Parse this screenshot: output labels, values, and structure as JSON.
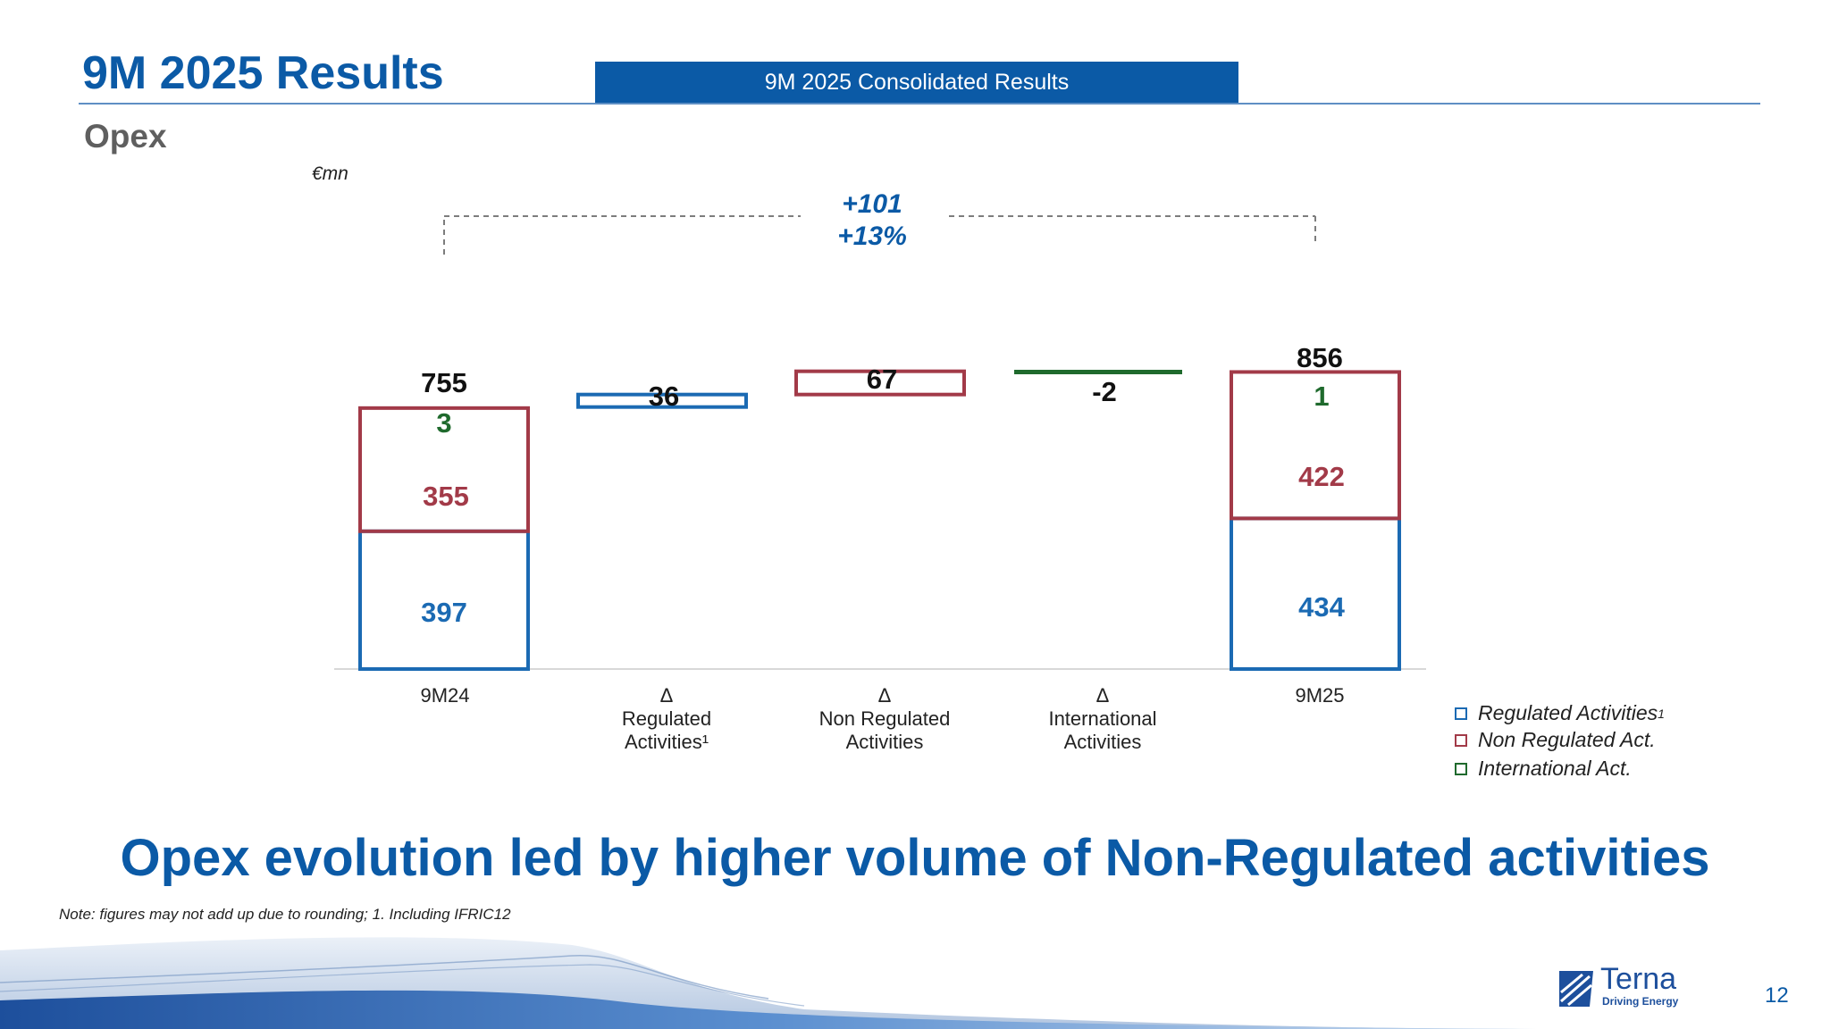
{
  "header": {
    "title": "9M 2025 Results",
    "banner": "9M 2025 Consolidated Results",
    "subtitle": "Opex"
  },
  "chart_data": {
    "type": "bar",
    "subtype": "waterfall",
    "unit": "€mn",
    "categories": [
      "9M24",
      "Δ",
      "Δ",
      "Δ",
      "9M25"
    ],
    "category_sublabels": [
      "",
      "Regulated Activities¹",
      "Non Regulated Activities",
      "International Activities",
      ""
    ],
    "series": [
      {
        "name": "Regulated Activities¹",
        "color": "#1b6ab3",
        "values": [
          397,
          36,
          0,
          0,
          434
        ]
      },
      {
        "name": "Non Regulated Act.",
        "color": "#a23a48",
        "values": [
          355,
          0,
          67,
          0,
          422
        ]
      },
      {
        "name": "International Act.",
        "color": "#1f6a2d",
        "values": [
          3,
          0,
          0,
          -2,
          1
        ]
      }
    ],
    "totals": {
      "9M24": 755,
      "9M25": 856
    },
    "step_labels": [
      "36",
      "67",
      "-2"
    ],
    "total_labels": [
      "755",
      "856"
    ],
    "segment_labels": {
      "9M24": {
        "regulated": "397",
        "non_regulated": "355",
        "international": "3"
      },
      "9M25": {
        "regulated": "434",
        "non_regulated": "422",
        "international": "1"
      }
    },
    "bridge_annotation": [
      "+101",
      "+13%"
    ],
    "legend_position": "right",
    "grid": false
  },
  "legend": [
    {
      "label": "Regulated Activities",
      "sup": "1",
      "color": "#1b6ab3"
    },
    {
      "label": "Non Regulated Act.",
      "sup": "",
      "color": "#a23a48"
    },
    {
      "label": "International Act.",
      "sup": "",
      "color": "#1f6a2d"
    }
  ],
  "headline": "Opex evolution led by higher volume of Non-Regulated activities",
  "note": "Note: figures may not add up due to rounding; 1. Including IFRIC12",
  "footer": {
    "logo_name": "Terna",
    "logo_tagline": "Driving Energy",
    "page_number": "12"
  }
}
